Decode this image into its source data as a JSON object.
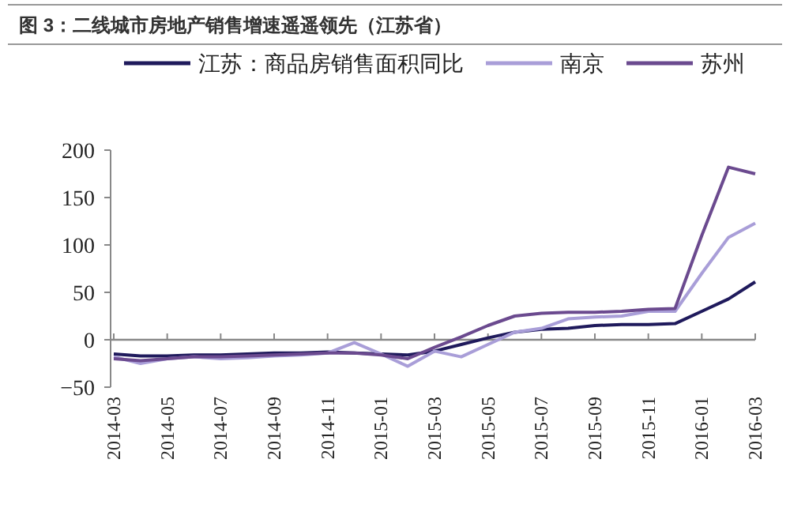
{
  "chart_data": {
    "type": "line",
    "title": "图 3：二线城市房地产销售增速遥遥领先（江苏省）",
    "categories": [
      "2014-03",
      null,
      "2014-05",
      null,
      "2014-07",
      null,
      "2014-09",
      null,
      "2014-11",
      null,
      "2015-01",
      null,
      "2015-03",
      null,
      "2015-05",
      null,
      "2015-07",
      null,
      "2015-09",
      null,
      "2015-11",
      null,
      "2016-01",
      null,
      "2016-03"
    ],
    "series": [
      {
        "name": "江苏：商品房销售面积同比",
        "color": "#1f1a5c",
        "values": [
          -15,
          -17,
          -17,
          -16,
          -16,
          -15,
          -14,
          -14,
          -13,
          -14,
          -15,
          -16,
          -12,
          -5,
          2,
          8,
          11,
          12,
          15,
          16,
          16,
          17,
          30,
          43,
          61
        ]
      },
      {
        "name": "南京",
        "color": "#a99ed8",
        "values": [
          -18,
          -25,
          -20,
          -18,
          -20,
          -19,
          -17,
          -16,
          -14,
          -3,
          -15,
          -28,
          -12,
          -18,
          -5,
          8,
          12,
          22,
          24,
          25,
          30,
          30,
          70,
          108,
          123
        ]
      },
      {
        "name": "苏州",
        "color": "#6b4a8f",
        "values": [
          -20,
          -22,
          -20,
          -18,
          -18,
          -17,
          -16,
          -15,
          -14,
          -14,
          -16,
          -20,
          -8,
          3,
          15,
          25,
          28,
          29,
          29,
          30,
          32,
          33,
          110,
          182,
          175
        ]
      }
    ],
    "ylim": [
      -50,
      200
    ],
    "yticks": [
      -50,
      0,
      50,
      100,
      150,
      200
    ],
    "legend": "top"
  }
}
